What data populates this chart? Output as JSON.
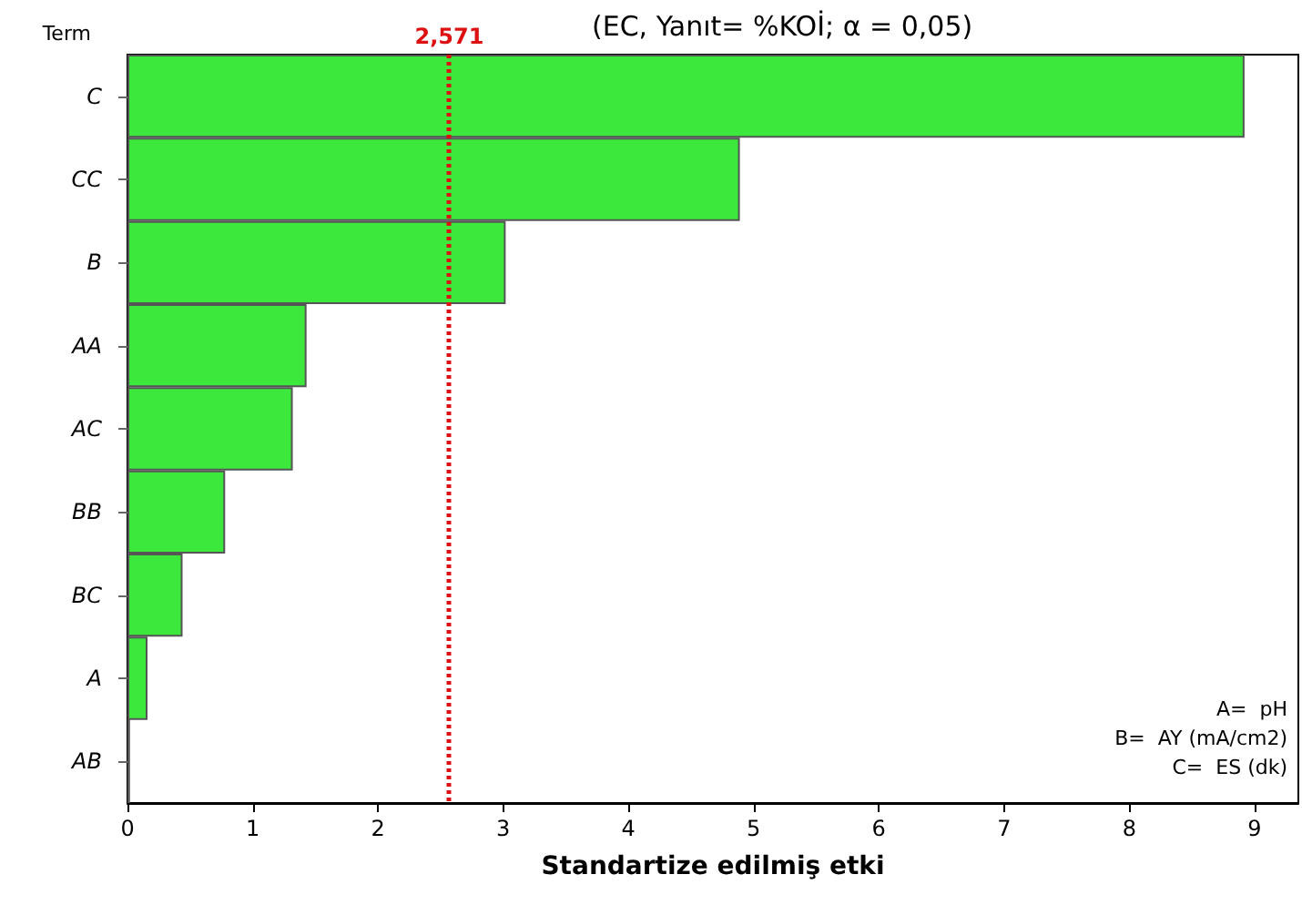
{
  "chart_data": {
    "type": "bar",
    "orientation": "horizontal",
    "title": "(EC, Yanıt= %KOİ; α = 0,05)",
    "xlabel": "Standartize edilmiş etki",
    "ylabel": "Term",
    "categories": [
      "C",
      "CC",
      "B",
      "AA",
      "AC",
      "BB",
      "BC",
      "A",
      "AB"
    ],
    "values": [
      8.92,
      4.89,
      3.02,
      1.43,
      1.32,
      0.78,
      0.44,
      0.16,
      0.02
    ],
    "color": "#3de83d",
    "xlim": [
      0,
      9.35
    ],
    "xticks": [
      0,
      1,
      2,
      3,
      4,
      5,
      6,
      7,
      8,
      9
    ],
    "ref_lines": [
      {
        "axis": "x",
        "value": 2.571,
        "label": "2,571",
        "color": "#dd1111",
        "line_style": "dotted"
      }
    ],
    "annotations": [
      "A=  pH",
      "B=  AY (mA/cm2)",
      "C=  ES (dk)"
    ],
    "grid": false
  }
}
